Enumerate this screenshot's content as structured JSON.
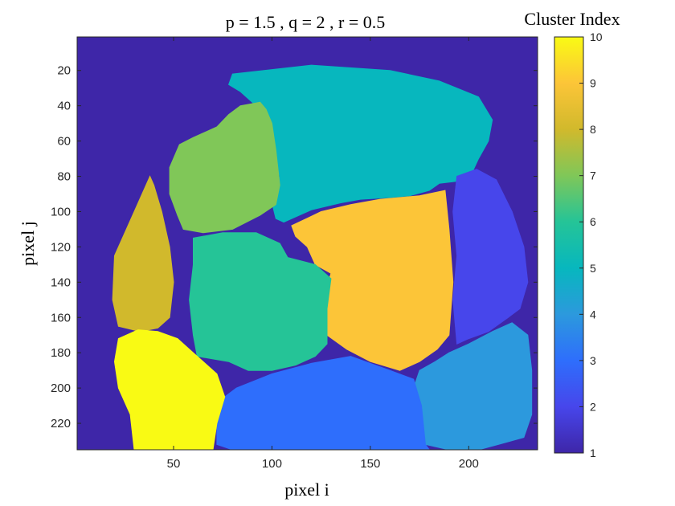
{
  "chart_data": {
    "type": "heatmap",
    "title": "p = 1.5 , q = 2 , r = 0.5",
    "xlabel": "pixel i",
    "ylabel": "pixel j",
    "xlim": [
      1,
      235
    ],
    "ylim": [
      1,
      235
    ],
    "y_reversed": true,
    "x_ticks": [
      "50",
      "100",
      "150",
      "200"
    ],
    "y_ticks": [
      "20",
      "40",
      "60",
      "80",
      "100",
      "120",
      "140",
      "160",
      "180",
      "200",
      "220"
    ],
    "colorbar": {
      "title": "Cluster Index",
      "range": [
        1,
        10
      ],
      "ticks": [
        "1",
        "2",
        "3",
        "4",
        "5",
        "6",
        "7",
        "8",
        "9",
        "10"
      ],
      "colormap": "parula"
    },
    "palette": {
      "1": "#3e26a8",
      "2": "#4746eb",
      "3": "#2e6efc",
      "4": "#2c99dd",
      "5": "#07b7be",
      "6": "#25c497",
      "7": "#80c758",
      "8": "#d1b92c",
      "9": "#fcc538",
      "10": "#f9fa14"
    },
    "background_cluster": 1,
    "regions": [
      {
        "cluster": 5,
        "polygon": [
          [
            80,
            22
          ],
          [
            120,
            17
          ],
          [
            160,
            20
          ],
          [
            185,
            26
          ],
          [
            205,
            35
          ],
          [
            212,
            48
          ],
          [
            210,
            60
          ],
          [
            205,
            70
          ],
          [
            200,
            82
          ],
          [
            185,
            84
          ],
          [
            180,
            88
          ],
          [
            170,
            91
          ],
          [
            160,
            92
          ],
          [
            145,
            93
          ],
          [
            135,
            95
          ],
          [
            120,
            99
          ],
          [
            106,
            106
          ],
          [
            102,
            104
          ],
          [
            100,
            95
          ],
          [
            104,
            80
          ],
          [
            100,
            65
          ],
          [
            97,
            50
          ],
          [
            92,
            40
          ],
          [
            84,
            32
          ],
          [
            78,
            28
          ]
        ]
      },
      {
        "cluster": 7,
        "polygon": [
          [
            94,
            38
          ],
          [
            84,
            40
          ],
          [
            78,
            45
          ],
          [
            72,
            52
          ],
          [
            60,
            58
          ],
          [
            53,
            62
          ],
          [
            48,
            75
          ],
          [
            48,
            90
          ],
          [
            52,
            102
          ],
          [
            55,
            110
          ],
          [
            65,
            112
          ],
          [
            80,
            110
          ],
          [
            94,
            102
          ],
          [
            102,
            96
          ],
          [
            104,
            85
          ],
          [
            102,
            65
          ],
          [
            100,
            50
          ],
          [
            97,
            42
          ]
        ]
      },
      {
        "cluster": 8,
        "polygon": [
          [
            38,
            80
          ],
          [
            32,
            95
          ],
          [
            26,
            110
          ],
          [
            20,
            125
          ],
          [
            19,
            150
          ],
          [
            22,
            165
          ],
          [
            33,
            168
          ],
          [
            42,
            166
          ],
          [
            48,
            160
          ],
          [
            50,
            140
          ],
          [
            48,
            120
          ],
          [
            44,
            100
          ],
          [
            40,
            85
          ]
        ]
      },
      {
        "cluster": 9,
        "polygon": [
          [
            110,
            108
          ],
          [
            125,
            100
          ],
          [
            140,
            96
          ],
          [
            155,
            93
          ],
          [
            175,
            91
          ],
          [
            188,
            88
          ],
          [
            190,
            110
          ],
          [
            192,
            140
          ],
          [
            190,
            170
          ],
          [
            184,
            178
          ],
          [
            175,
            185
          ],
          [
            165,
            190
          ],
          [
            150,
            185
          ],
          [
            138,
            178
          ],
          [
            128,
            170
          ],
          [
            126,
            150
          ],
          [
            130,
            135
          ],
          [
            122,
            130
          ],
          [
            118,
            120
          ],
          [
            112,
            114
          ]
        ]
      },
      {
        "cluster": 6,
        "polygon": [
          [
            60,
            115
          ],
          [
            75,
            112
          ],
          [
            92,
            112
          ],
          [
            104,
            118
          ],
          [
            108,
            126
          ],
          [
            122,
            130
          ],
          [
            130,
            138
          ],
          [
            128,
            155
          ],
          [
            128,
            175
          ],
          [
            122,
            182
          ],
          [
            112,
            187
          ],
          [
            100,
            190
          ],
          [
            88,
            190
          ],
          [
            78,
            185
          ],
          [
            62,
            182
          ],
          [
            60,
            170
          ],
          [
            58,
            150
          ],
          [
            60,
            130
          ]
        ]
      },
      {
        "cluster": 2,
        "polygon": [
          [
            194,
            80
          ],
          [
            204,
            76
          ],
          [
            214,
            82
          ],
          [
            222,
            100
          ],
          [
            228,
            120
          ],
          [
            230,
            140
          ],
          [
            226,
            155
          ],
          [
            220,
            160
          ],
          [
            210,
            168
          ],
          [
            200,
            172
          ],
          [
            194,
            175
          ],
          [
            192,
            150
          ],
          [
            194,
            125
          ],
          [
            192,
            100
          ]
        ]
      },
      {
        "cluster": 4,
        "polygon": [
          [
            190,
            180
          ],
          [
            200,
            175
          ],
          [
            212,
            168
          ],
          [
            222,
            163
          ],
          [
            230,
            170
          ],
          [
            232,
            190
          ],
          [
            232,
            215
          ],
          [
            228,
            228
          ],
          [
            215,
            232
          ],
          [
            205,
            235
          ],
          [
            190,
            235
          ],
          [
            178,
            232
          ],
          [
            176,
            215
          ],
          [
            172,
            200
          ],
          [
            175,
            190
          ],
          [
            183,
            185
          ]
        ]
      },
      {
        "cluster": 3,
        "polygon": [
          [
            82,
            200
          ],
          [
            100,
            192
          ],
          [
            120,
            186
          ],
          [
            140,
            182
          ],
          [
            160,
            190
          ],
          [
            172,
            195
          ],
          [
            176,
            210
          ],
          [
            178,
            232
          ],
          [
            180,
            235
          ],
          [
            150,
            235
          ],
          [
            110,
            235
          ],
          [
            80,
            235
          ],
          [
            72,
            232
          ],
          [
            72,
            215
          ],
          [
            76,
            205
          ]
        ]
      },
      {
        "cluster": 10,
        "polygon": [
          [
            22,
            172
          ],
          [
            32,
            167
          ],
          [
            42,
            168
          ],
          [
            52,
            172
          ],
          [
            60,
            180
          ],
          [
            72,
            192
          ],
          [
            76,
            205
          ],
          [
            72,
            220
          ],
          [
            70,
            235
          ],
          [
            30,
            235
          ],
          [
            28,
            215
          ],
          [
            22,
            200
          ],
          [
            20,
            185
          ]
        ]
      }
    ]
  }
}
